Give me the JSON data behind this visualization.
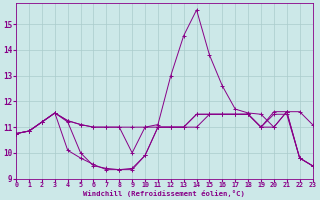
{
  "xlabel": "Windchill (Refroidissement éolien,°C)",
  "bg_color": "#cce8e8",
  "grid_color": "#aacccc",
  "line_color": "#880088",
  "xlim": [
    0,
    23
  ],
  "ylim": [
    9.0,
    15.8
  ],
  "yticks": [
    9,
    10,
    11,
    12,
    13,
    14,
    15
  ],
  "xticks": [
    0,
    1,
    2,
    3,
    4,
    5,
    6,
    7,
    8,
    9,
    10,
    11,
    12,
    13,
    14,
    15,
    16,
    17,
    18,
    19,
    20,
    21,
    22,
    23
  ],
  "series": [
    [
      10.75,
      10.85,
      11.2,
      11.55,
      11.25,
      11.1,
      11.0,
      11.0,
      11.0,
      11.0,
      11.0,
      11.0,
      11.0,
      11.0,
      11.5,
      11.5,
      11.5,
      11.5,
      11.5,
      11.0,
      11.0,
      11.6,
      11.6,
      11.1
    ],
    [
      10.75,
      10.85,
      11.2,
      11.55,
      11.25,
      11.1,
      11.0,
      11.0,
      11.0,
      10.0,
      11.0,
      11.1,
      13.0,
      14.55,
      15.55,
      13.8,
      12.6,
      11.7,
      11.55,
      11.5,
      11.0,
      11.6,
      9.8,
      9.5
    ],
    [
      10.75,
      10.85,
      11.2,
      11.55,
      11.2,
      10.0,
      9.5,
      9.4,
      9.35,
      9.4,
      9.9,
      11.0,
      11.0,
      11.0,
      11.0,
      11.5,
      11.5,
      11.5,
      11.5,
      11.0,
      11.6,
      11.6,
      9.8,
      9.5
    ],
    [
      10.75,
      10.85,
      11.2,
      11.55,
      10.1,
      9.8,
      9.55,
      9.35,
      9.35,
      9.35,
      9.9,
      11.0,
      11.0,
      11.0,
      11.5,
      11.5,
      11.5,
      11.5,
      11.5,
      11.0,
      11.5,
      11.5,
      9.8,
      9.5
    ]
  ]
}
